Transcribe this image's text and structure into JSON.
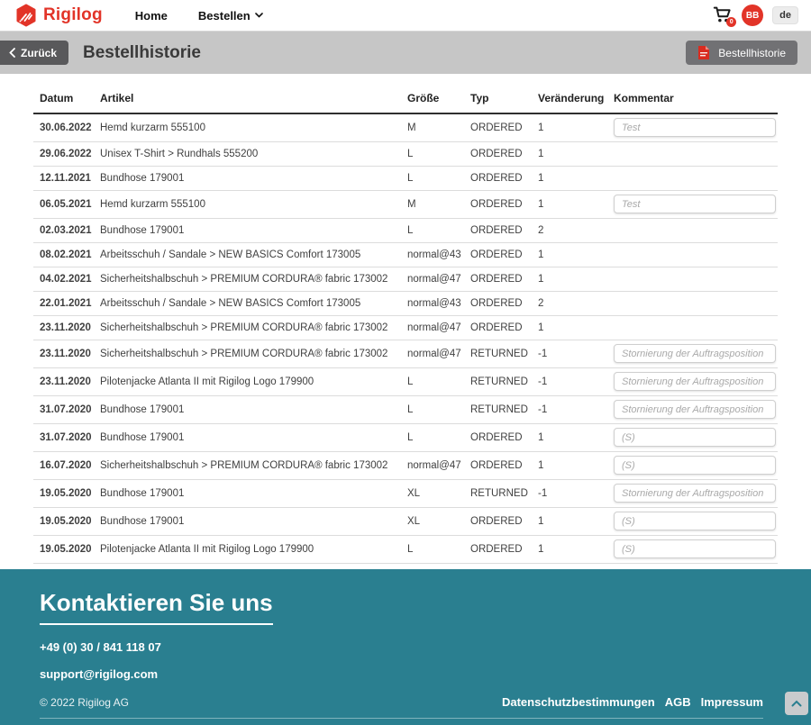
{
  "navbar": {
    "brand": "Rigilog",
    "items": [
      {
        "label": "Home"
      },
      {
        "label": "Bestellen"
      }
    ],
    "cart_badge": "0",
    "avatar_initials": "BB",
    "language": "de"
  },
  "page_header": {
    "back_label": "Zurück",
    "title": "Bestellhistorie",
    "pdf_button_label": "Bestellhistorie"
  },
  "table": {
    "columns": [
      "Datum",
      "Artikel",
      "Größe",
      "Typ",
      "Veränderung",
      "Kommentar"
    ],
    "rows": [
      {
        "date": "30.06.2022",
        "article": "Hemd kurzarm 555100",
        "size": "M",
        "type": "ORDERED",
        "change": "1",
        "comment": "Test"
      },
      {
        "date": "29.06.2022",
        "article": "Unisex T-Shirt > Rundhals 555200",
        "size": "L",
        "type": "ORDERED",
        "change": "1",
        "comment": ""
      },
      {
        "date": "12.11.2021",
        "article": "Bundhose 179001",
        "size": "L",
        "type": "ORDERED",
        "change": "1",
        "comment": ""
      },
      {
        "date": "06.05.2021",
        "article": "Hemd kurzarm 555100",
        "size": "M",
        "type": "ORDERED",
        "change": "1",
        "comment": "Test"
      },
      {
        "date": "02.03.2021",
        "article": "Bundhose 179001",
        "size": "L",
        "type": "ORDERED",
        "change": "2",
        "comment": ""
      },
      {
        "date": "08.02.2021",
        "article": "Arbeitsschuh / Sandale > NEW BASICS Comfort 173005",
        "size": "normal@43",
        "type": "ORDERED",
        "change": "1",
        "comment": ""
      },
      {
        "date": "04.02.2021",
        "article": "Sicherheitshalbschuh > PREMIUM CORDURA® fabric 173002",
        "size": "normal@47",
        "type": "ORDERED",
        "change": "1",
        "comment": ""
      },
      {
        "date": "22.01.2021",
        "article": "Arbeitsschuh / Sandale > NEW BASICS Comfort 173005",
        "size": "normal@43",
        "type": "ORDERED",
        "change": "2",
        "comment": ""
      },
      {
        "date": "23.11.2020",
        "article": "Sicherheitshalbschuh > PREMIUM CORDURA® fabric 173002",
        "size": "normal@47",
        "type": "ORDERED",
        "change": "1",
        "comment": ""
      },
      {
        "date": "23.11.2020",
        "article": "Sicherheitshalbschuh > PREMIUM CORDURA® fabric 173002",
        "size": "normal@47",
        "type": "RETURNED",
        "change": "-1",
        "comment": "Stornierung der Auftragsposition"
      },
      {
        "date": "23.11.2020",
        "article": "Pilotenjacke Atlanta II mit Rigilog Logo 179900",
        "size": "L",
        "type": "RETURNED",
        "change": "-1",
        "comment": "Stornierung der Auftragsposition"
      },
      {
        "date": "31.07.2020",
        "article": "Bundhose 179001",
        "size": "L",
        "type": "RETURNED",
        "change": "-1",
        "comment": "Stornierung der Auftragsposition"
      },
      {
        "date": "31.07.2020",
        "article": "Bundhose 179001",
        "size": "L",
        "type": "ORDERED",
        "change": "1",
        "comment": "(S)"
      },
      {
        "date": "16.07.2020",
        "article": "Sicherheitshalbschuh > PREMIUM CORDURA® fabric 173002",
        "size": "normal@47",
        "type": "ORDERED",
        "change": "1",
        "comment": "(S)"
      },
      {
        "date": "19.05.2020",
        "article": "Bundhose 179001",
        "size": "XL",
        "type": "RETURNED",
        "change": "-1",
        "comment": "Stornierung der Auftragsposition"
      },
      {
        "date": "19.05.2020",
        "article": "Bundhose 179001",
        "size": "XL",
        "type": "ORDERED",
        "change": "1",
        "comment": "(S)"
      },
      {
        "date": "19.05.2020",
        "article": "Pilotenjacke Atlanta II mit Rigilog Logo 179900",
        "size": "L",
        "type": "ORDERED",
        "change": "1",
        "comment": "(S)"
      }
    ]
  },
  "footer": {
    "heading": "Kontaktieren Sie uns",
    "phone": "+49 (0) 30 / 841 118 07",
    "email": "support@rigilog.com",
    "copyright": "© 2022 Rigilog AG",
    "links": [
      "Datenschutzbestimmungen",
      "AGB",
      "Impressum"
    ]
  },
  "colors": {
    "brand_red": "#e23428",
    "footer_teal": "#2a7f90",
    "page_bar_gray": "#c6c6c6"
  }
}
